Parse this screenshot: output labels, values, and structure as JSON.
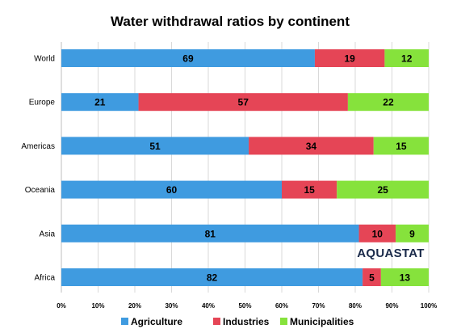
{
  "chart_data": {
    "type": "bar",
    "orientation": "horizontal",
    "stacked": true,
    "title": "Water withdrawal ratios by continent",
    "categories": [
      "World",
      "Europe",
      "Americas",
      "Oceania",
      "Asia",
      "Africa"
    ],
    "series": [
      {
        "name": "Agriculture",
        "color": "#3f9be0",
        "values": [
          69,
          21,
          51,
          60,
          81,
          82
        ]
      },
      {
        "name": "Industries",
        "color": "#e54556",
        "values": [
          19,
          57,
          34,
          15,
          10,
          5
        ]
      },
      {
        "name": "Municipalities",
        "color": "#86e23c",
        "values": [
          12,
          22,
          15,
          25,
          9,
          13
        ]
      }
    ],
    "xlim": [
      0,
      100
    ],
    "x_ticks": [
      "0%",
      "10%",
      "20%",
      "30%",
      "40%",
      "50%",
      "60%",
      "70%",
      "80%",
      "90%",
      "100%"
    ],
    "grid": true,
    "legend": "bottom",
    "watermark": "AQUASTAT"
  }
}
